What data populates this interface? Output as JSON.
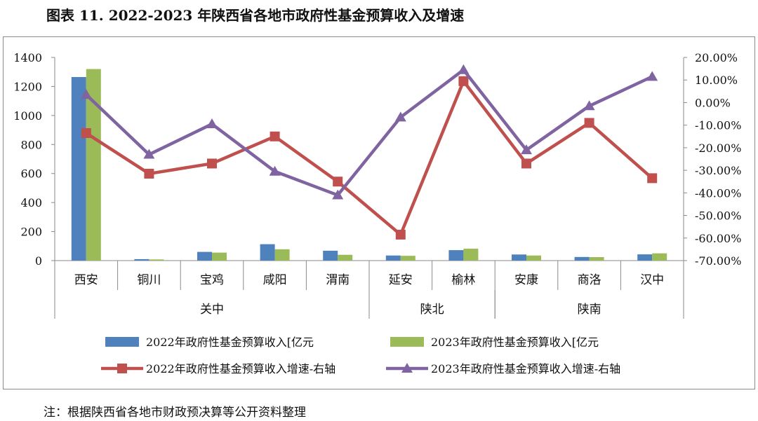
{
  "title": "图表 11.    2022-2023 年陕西省各地市政府性基金预算收入及增速",
  "note": "注：根据陕西省各地市财政预决算等公开资料整理",
  "chart_data": {
    "type": "bar+line",
    "categories": [
      "西安",
      "铜川",
      "宝鸡",
      "咸阳",
      "渭南",
      "延安",
      "榆林",
      "安康",
      "商洛",
      "汉中"
    ],
    "groups": [
      {
        "label": "关中",
        "start": 0,
        "end": 4
      },
      {
        "label": "陕北",
        "start": 5,
        "end": 6
      },
      {
        "label": "陕南",
        "start": 7,
        "end": 9
      }
    ],
    "left_axis": {
      "min": 0,
      "max": 1400,
      "step": 200,
      "ticks": [
        "0",
        "200",
        "400",
        "600",
        "800",
        "1000",
        "1200",
        "1400"
      ]
    },
    "right_axis": {
      "min": -70,
      "max": 20,
      "step": 10,
      "ticks": [
        "-70.00%",
        "-60.00%",
        "-50.00%",
        "-40.00%",
        "-30.00%",
        "-20.00%",
        "-10.00%",
        "0.00%",
        "10.00%",
        "20.00%"
      ]
    },
    "series": [
      {
        "name": "2022年政府性基金预算收入[亿元",
        "type": "bar",
        "axis": "left",
        "color": "#4f81bd",
        "values": [
          1265,
          10,
          60,
          113,
          68,
          35,
          72,
          42,
          25,
          43
        ]
      },
      {
        "name": "2023年政府性基金预算收入[亿元",
        "type": "bar",
        "axis": "left",
        "color": "#9bbb59",
        "values": [
          1320,
          8,
          55,
          78,
          40,
          33,
          82,
          35,
          24,
          50
        ]
      },
      {
        "name": "2022年政府性基金预算收入增速-右轴",
        "type": "line",
        "axis": "right",
        "color": "#c0504d",
        "marker": "square",
        "values": [
          -13.5,
          -31.5,
          -27,
          -15,
          -35,
          -58.5,
          9.5,
          -27,
          -9,
          -33.5
        ]
      },
      {
        "name": "2023年政府性基金预算收入增速-右轴",
        "type": "line",
        "axis": "right",
        "color": "#8064a2",
        "marker": "triangle",
        "values": [
          3.5,
          -23,
          -9.5,
          -30.5,
          -41,
          -6.5,
          14.5,
          -21,
          -1.5,
          11.5
        ]
      }
    ],
    "legend_position": "bottom",
    "grid": false
  }
}
